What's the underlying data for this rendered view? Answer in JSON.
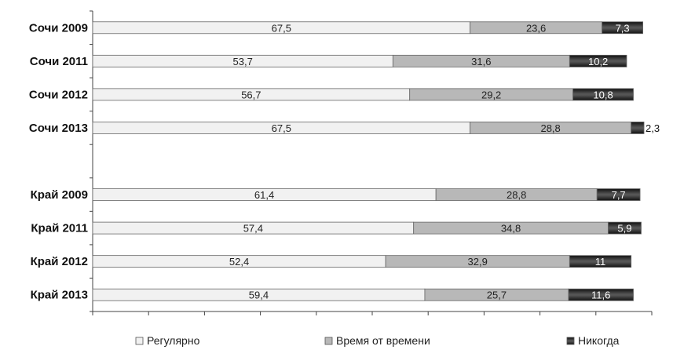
{
  "chart_data": {
    "type": "bar",
    "orientation": "horizontal",
    "stacked": true,
    "normalized_to_percent": true,
    "categories": [
      "Сочи 2009",
      "Сочи 2011",
      "Сочи 2012",
      "Сочи 2013",
      "",
      "Край 2009",
      "Край 2011",
      "Край 2012",
      "Край 2013"
    ],
    "series": [
      {
        "name": "Регулярно",
        "color": "#f1f1f1",
        "values": [
          67.5,
          53.7,
          56.7,
          67.5,
          null,
          61.4,
          57.4,
          52.4,
          59.4
        ],
        "labels": [
          "67,5",
          "53,7",
          "56,7",
          "67,5",
          "",
          "61,4",
          "57,4",
          "52,4",
          "59,4"
        ]
      },
      {
        "name": "Время от времени",
        "color": "#b8b8b8",
        "values": [
          23.6,
          31.6,
          29.2,
          28.8,
          null,
          28.8,
          34.8,
          32.9,
          25.7
        ],
        "labels": [
          "23,6",
          "31,6",
          "29,2",
          "28,8",
          "",
          "28,8",
          "34,8",
          "32,9",
          "25,7"
        ]
      },
      {
        "name": "Никогда",
        "color": "#222222",
        "values": [
          7.3,
          10.2,
          10.8,
          2.3,
          null,
          7.7,
          5.9,
          11,
          11.6
        ],
        "labels": [
          "7,3",
          "10,2",
          "10,8",
          "2,3",
          "",
          "7,7",
          "5,9",
          "11",
          "11,6"
        ]
      }
    ],
    "xlim": [
      0,
      100
    ],
    "x_ticks": 10,
    "grid": false,
    "legend_position": "bottom",
    "title": "",
    "xlabel": "",
    "ylabel": ""
  }
}
